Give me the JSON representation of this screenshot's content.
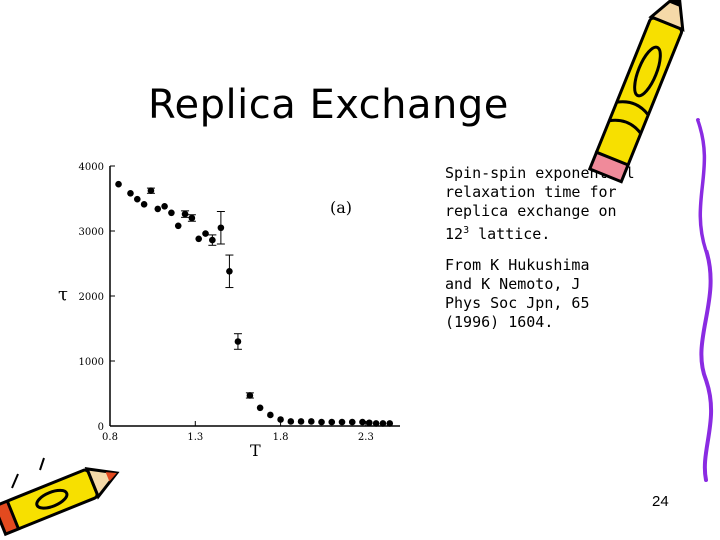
{
  "slide": {
    "title": "Replica Exchange",
    "caption_lines": [
      "Spin-spin exponential",
      "relaxation time for",
      "replica exchange on"
    ],
    "caption_lattice_base": "12",
    "caption_lattice_exp": "3",
    "caption_lattice_rest": " lattice.",
    "citation_lines": [
      "From K Hukushima",
      "and K Nemoto, J",
      "Phys Soc Jpn, 65",
      "(1996) 1604."
    ],
    "page_number": "24"
  },
  "decorations": [
    "pencil-icon",
    "pencil-icon"
  ],
  "colors": {
    "marker": "#000000",
    "pencil_yellow": "#f7e000",
    "pencil_outline": "#000000",
    "pencil_tip": "#e34a1f"
  },
  "chart_data": {
    "type": "scatter",
    "panel_label": "(a)",
    "xlabel": "T",
    "ylabel": "τ",
    "xlim": [
      0.8,
      2.5
    ],
    "ylim": [
      0,
      4000
    ],
    "xticks": [
      0.8,
      1.3,
      1.8,
      2.3
    ],
    "xtick_labels": [
      "0.8",
      "1.3",
      "1.8",
      "2.3"
    ],
    "yticks": [
      0,
      1000,
      2000,
      3000,
      4000
    ],
    "ytick_labels": [
      "0",
      "1000",
      "2000",
      "3000",
      "4000"
    ],
    "grid": false,
    "series": [
      {
        "points": [
          {
            "x": 0.85,
            "y": 3720,
            "err": 0
          },
          {
            "x": 0.92,
            "y": 3580,
            "err": 0
          },
          {
            "x": 0.96,
            "y": 3490,
            "err": 0
          },
          {
            "x": 1.0,
            "y": 3410,
            "err": 0
          },
          {
            "x": 1.04,
            "y": 3620,
            "err": 40
          },
          {
            "x": 1.08,
            "y": 3340,
            "err": 0
          },
          {
            "x": 1.12,
            "y": 3380,
            "err": 0
          },
          {
            "x": 1.16,
            "y": 3280,
            "err": 0
          },
          {
            "x": 1.2,
            "y": 3080,
            "err": 0
          },
          {
            "x": 1.24,
            "y": 3260,
            "err": 50
          },
          {
            "x": 1.28,
            "y": 3200,
            "err": 50
          },
          {
            "x": 1.32,
            "y": 2880,
            "err": 0
          },
          {
            "x": 1.36,
            "y": 2960,
            "err": 0
          },
          {
            "x": 1.4,
            "y": 2860,
            "err": 80
          },
          {
            "x": 1.45,
            "y": 3050,
            "err": 250
          },
          {
            "x": 1.5,
            "y": 2380,
            "err": 250
          },
          {
            "x": 1.55,
            "y": 1300,
            "err": 120
          },
          {
            "x": 1.62,
            "y": 470,
            "err": 40
          },
          {
            "x": 1.68,
            "y": 280,
            "err": 0
          },
          {
            "x": 1.74,
            "y": 170,
            "err": 0
          },
          {
            "x": 1.8,
            "y": 100,
            "err": 0
          },
          {
            "x": 1.86,
            "y": 70,
            "err": 0
          },
          {
            "x": 1.92,
            "y": 70,
            "err": 0
          },
          {
            "x": 1.98,
            "y": 70,
            "err": 0
          },
          {
            "x": 2.04,
            "y": 60,
            "err": 0
          },
          {
            "x": 2.1,
            "y": 60,
            "err": 0
          },
          {
            "x": 2.16,
            "y": 60,
            "err": 0
          },
          {
            "x": 2.22,
            "y": 60,
            "err": 0
          },
          {
            "x": 2.28,
            "y": 60,
            "err": 0
          },
          {
            "x": 2.32,
            "y": 50,
            "err": 0
          },
          {
            "x": 2.36,
            "y": 40,
            "err": 0
          },
          {
            "x": 2.4,
            "y": 40,
            "err": 0
          },
          {
            "x": 2.44,
            "y": 40,
            "err": 0
          }
        ]
      }
    ]
  }
}
